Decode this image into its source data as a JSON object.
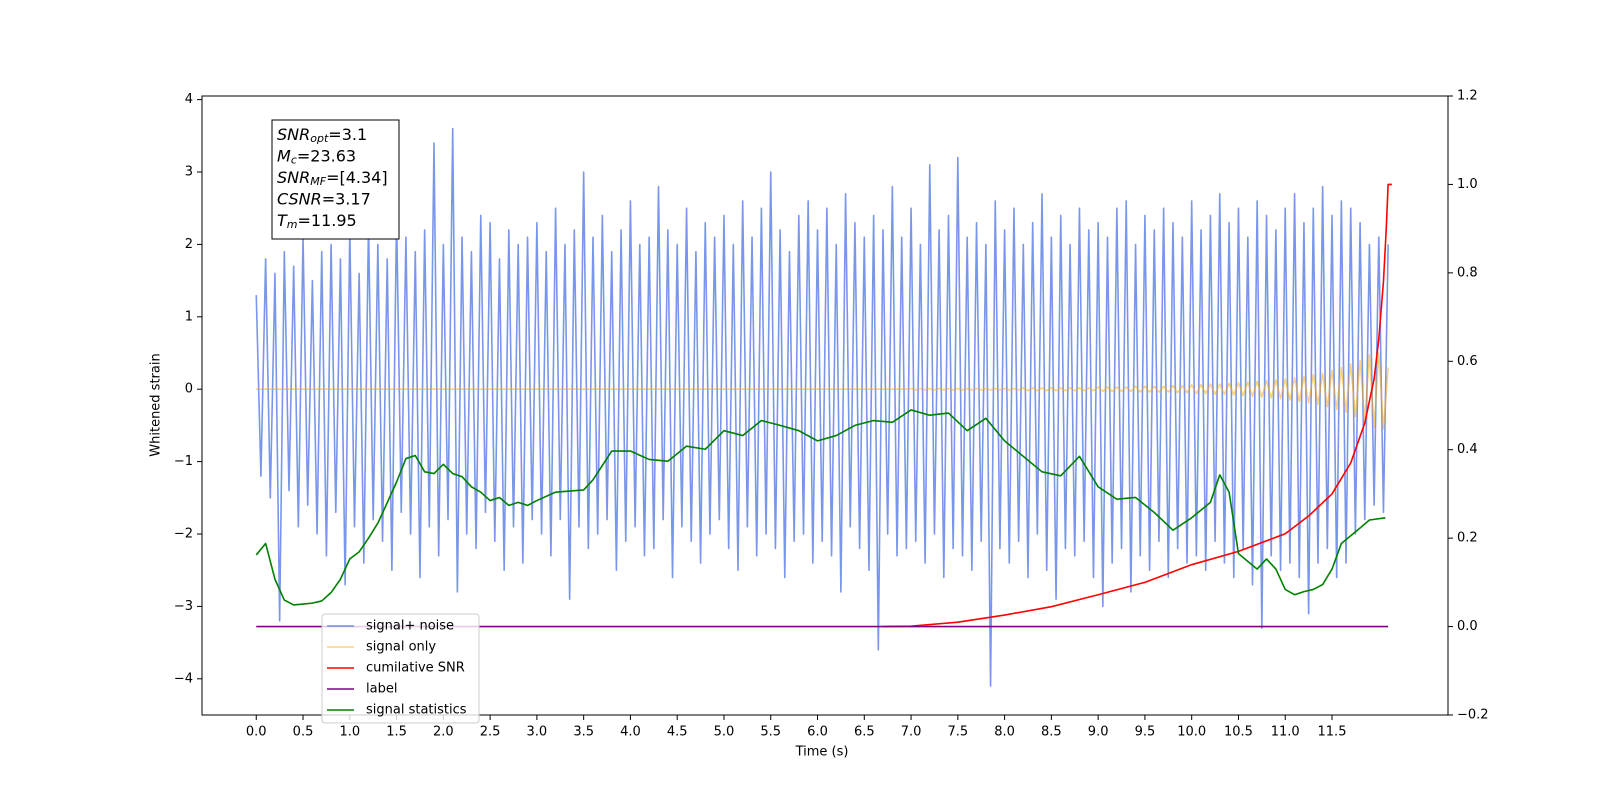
{
  "chart_data": {
    "type": "line",
    "xlabel": "Time (s)",
    "ylabel": "Whitened strain",
    "xlim": [
      -0.58,
      12.74
    ],
    "ylim": [
      -4.5,
      4.05
    ],
    "y2lim": [
      -0.2,
      1.2
    ],
    "xticks": [
      {
        "value": 0,
        "label": "0.0"
      },
      0.5,
      {
        "value": 1,
        "label": "1.0"
      },
      1.5,
      {
        "value": 2,
        "label": "2.0"
      },
      2.5,
      {
        "value": 3,
        "label": "3.0"
      },
      3.5,
      {
        "value": 4,
        "label": "4.0"
      },
      4.5,
      {
        "value": 5,
        "label": "5.0"
      },
      5.5,
      {
        "value": 6,
        "label": "6.0"
      },
      6.5,
      {
        "value": 7,
        "label": "7.0"
      },
      7.5,
      {
        "value": 8,
        "label": "8.0"
      },
      8.5,
      {
        "value": 9,
        "label": "9.0"
      },
      9.5,
      {
        "value": 10,
        "label": "10.0"
      },
      10.5,
      {
        "value": 11,
        "label": "11.0"
      },
      11.5
    ],
    "yticks": [
      {
        "value": -4,
        "label": "−4"
      },
      {
        "value": -3,
        "label": "−3"
      },
      {
        "value": -2,
        "label": "−2"
      },
      {
        "value": -1,
        "label": "−1"
      },
      0,
      1,
      2,
      3,
      4
    ],
    "y2ticks": [
      {
        "value": -0.2,
        "label": "−0.2"
      },
      {
        "value": 0,
        "label": "0.0"
      },
      0.2,
      0.4,
      0.6,
      0.8,
      {
        "value": 1,
        "label": "1.0"
      },
      1.2
    ],
    "legend": "lower left",
    "annotations": [
      {
        "main": "SNR",
        "sub": "opt",
        "rest": "=3.1"
      },
      {
        "main": "M",
        "sub": "c",
        "rest": "=23.63"
      },
      {
        "main": "SNR",
        "sub": "MF",
        "rest": "=[4.34]"
      },
      {
        "main": "CSNR",
        "rest": "=3.17"
      },
      {
        "main": "T",
        "sub": "m",
        "rest": "=11.95"
      }
    ],
    "x": [
      0,
      0.05,
      0.1,
      0.15,
      0.2,
      0.25,
      0.3,
      0.35,
      0.4,
      0.45,
      0.5,
      0.55,
      0.6,
      0.65,
      0.7,
      0.75,
      0.8,
      0.85,
      0.9,
      0.95,
      1,
      1.05,
      1.1,
      1.15,
      1.2,
      1.25,
      1.3,
      1.35,
      1.4,
      1.45,
      1.5,
      1.55,
      1.6,
      1.65,
      1.7,
      1.75,
      1.8,
      1.85,
      1.9,
      1.95,
      2,
      2.05,
      2.1,
      2.15,
      2.2,
      2.25,
      2.3,
      2.35,
      2.4,
      2.45,
      2.5,
      2.55,
      2.6,
      2.65,
      2.7,
      2.75,
      2.8,
      2.85,
      2.9,
      2.95,
      3,
      3.05,
      3.1,
      3.15,
      3.2,
      3.25,
      3.3,
      3.35,
      3.4,
      3.45,
      3.5,
      3.55,
      3.6,
      3.65,
      3.7,
      3.75,
      3.8,
      3.85,
      3.9,
      3.95,
      4,
      4.05,
      4.1,
      4.15,
      4.2,
      4.25,
      4.3,
      4.35,
      4.4,
      4.45,
      4.5,
      4.55,
      4.6,
      4.65,
      4.7,
      4.75,
      4.8,
      4.85,
      4.9,
      4.95,
      5,
      5.05,
      5.1,
      5.15,
      5.2,
      5.25,
      5.3,
      5.35,
      5.4,
      5.45,
      5.5,
      5.55,
      5.6,
      5.65,
      5.7,
      5.75,
      5.8,
      5.85,
      5.9,
      5.95,
      6,
      6.05,
      6.1,
      6.15,
      6.2,
      6.25,
      6.3,
      6.35,
      6.4,
      6.45,
      6.5,
      6.55,
      6.6,
      6.65,
      6.7,
      6.75,
      6.8,
      6.85,
      6.9,
      6.95,
      7,
      7.05,
      7.1,
      7.15,
      7.2,
      7.25,
      7.3,
      7.35,
      7.4,
      7.45,
      7.5,
      7.55,
      7.6,
      7.65,
      7.7,
      7.75,
      7.8,
      7.85,
      7.9,
      7.95,
      8,
      8.05,
      8.1,
      8.15,
      8.2,
      8.25,
      8.3,
      8.35,
      8.4,
      8.45,
      8.5,
      8.55,
      8.6,
      8.65,
      8.7,
      8.75,
      8.8,
      8.85,
      8.9,
      8.95,
      9,
      9.05,
      9.1,
      9.15,
      9.2,
      9.25,
      9.3,
      9.35,
      9.4,
      9.45,
      9.5,
      9.55,
      9.6,
      9.65,
      9.7,
      9.75,
      9.8,
      9.85,
      9.9,
      9.95,
      10,
      10.05,
      10.1,
      10.15,
      10.2,
      10.25,
      10.3,
      10.35,
      10.4,
      10.45,
      10.5,
      10.55,
      10.6,
      10.65,
      10.7,
      10.75,
      10.8,
      10.85,
      10.9,
      10.95,
      11,
      11.05,
      11.1,
      11.15,
      11.2,
      11.25,
      11.3,
      11.35,
      11.4,
      11.45,
      11.5,
      11.55,
      11.6,
      11.65,
      11.7,
      11.75,
      11.8,
      11.85,
      11.9,
      11.95,
      12,
      12.05,
      12.1
    ],
    "series": [
      {
        "name": "signal+ noise",
        "color": "royalblue",
        "alpha": 0.7,
        "values": [
          1.3,
          -1.2,
          1.8,
          -1.5,
          1.6,
          -3.2,
          1.9,
          -1.4,
          1.7,
          -1.9,
          2.1,
          -1.6,
          1.5,
          -2.0,
          1.9,
          -2.3,
          2.0,
          -1.7,
          1.8,
          -2.7,
          2.2,
          -1.9,
          1.6,
          -2.4,
          2.3,
          -1.8,
          2.0,
          -2.1,
          1.8,
          -2.5,
          2.4,
          -1.7,
          2.1,
          -2.0,
          1.9,
          -2.6,
          2.2,
          -1.9,
          3.4,
          -2.3,
          2.0,
          -1.8,
          3.6,
          -2.8,
          2.1,
          -2.0,
          1.9,
          -2.2,
          2.4,
          -1.7,
          2.3,
          -2.1,
          1.8,
          -2.5,
          2.2,
          -1.9,
          2.0,
          -2.4,
          2.1,
          -1.8,
          2.3,
          -2.0,
          1.9,
          -2.3,
          2.5,
          -1.8,
          2.0,
          -2.9,
          2.2,
          -1.9,
          3.0,
          -2.2,
          2.1,
          -2.0,
          2.4,
          -1.8,
          1.9,
          -2.5,
          2.2,
          -2.1,
          2.6,
          -1.9,
          2.0,
          -2.3,
          2.1,
          -2.2,
          2.8,
          -1.8,
          2.2,
          -2.6,
          2.0,
          -1.9,
          2.5,
          -2.1,
          1.9,
          -2.4,
          2.3,
          -2.0,
          2.1,
          -1.8,
          2.4,
          -2.2,
          2.0,
          -2.5,
          2.6,
          -1.9,
          2.1,
          -2.3,
          2.5,
          -2.0,
          3.0,
          -2.2,
          2.2,
          -2.6,
          1.9,
          -2.1,
          2.4,
          -2.0,
          2.6,
          -2.4,
          2.2,
          -2.1,
          2.5,
          -2.3,
          2.0,
          -2.8,
          2.7,
          -1.9,
          2.3,
          -2.2,
          2.1,
          -2.5,
          2.4,
          -3.6,
          2.2,
          -2.0,
          2.8,
          -2.3,
          2.1,
          -2.2,
          2.5,
          -2.1,
          2.0,
          -2.4,
          3.1,
          -2.0,
          2.2,
          -2.6,
          2.4,
          -2.2,
          3.2,
          -2.3,
          2.1,
          -2.5,
          2.3,
          -2.1,
          2.0,
          -4.1,
          2.6,
          -2.2,
          2.2,
          -2.4,
          2.5,
          -2.1,
          2.0,
          -2.6,
          2.3,
          -2.0,
          2.7,
          -2.5,
          2.1,
          -2.9,
          2.4,
          -2.2,
          2.0,
          -2.3,
          2.5,
          -2.1,
          2.2,
          -2.6,
          2.3,
          -3.0,
          2.1,
          -2.4,
          2.5,
          -2.2,
          2.6,
          -2.8,
          2.0,
          -2.3,
          2.4,
          -2.5,
          2.2,
          -2.1,
          2.5,
          -2.6,
          2.3,
          -2.2,
          2.1,
          -2.4,
          2.6,
          -2.3,
          2.2,
          -2.5,
          2.4,
          -2.1,
          2.7,
          -2.4,
          2.3,
          -2.6,
          2.5,
          -2.2,
          2.1,
          -2.7,
          2.6,
          -3.3,
          2.4,
          -2.3,
          2.2,
          -2.5,
          2.5,
          -2.4,
          2.7,
          -2.6,
          2.3,
          -3.1,
          2.5,
          -2.4,
          2.8,
          -2.2,
          2.4,
          -2.6,
          2.6,
          -2.4,
          2.5,
          -2.0,
          2.3,
          -1.8,
          2.0,
          -1.6,
          2.1,
          -1.7,
          2.0
        ]
      },
      {
        "name": "signal only",
        "color": "orange",
        "alpha": 0.5,
        "values": [
          0,
          0,
          0,
          0,
          0,
          0,
          0,
          0,
          0,
          0,
          0,
          0,
          0,
          0,
          0,
          0,
          0,
          0,
          0,
          0,
          0,
          0,
          0,
          0,
          0,
          0,
          0,
          0,
          0,
          0,
          0,
          0,
          0,
          0,
          0,
          0,
          0,
          0,
          0,
          0,
          0,
          0,
          0,
          0,
          0,
          0,
          0,
          0,
          0,
          0,
          0,
          0,
          0,
          0,
          0,
          0,
          0,
          0,
          0,
          0,
          0,
          0,
          0,
          0,
          0,
          0,
          0,
          0,
          0,
          0,
          0,
          0,
          0,
          0,
          0,
          0,
          0,
          0,
          0,
          0,
          0,
          0,
          0,
          0,
          0,
          0,
          0,
          0,
          0,
          0,
          0,
          0,
          0,
          0,
          0,
          0,
          0,
          0,
          0,
          0,
          0,
          0,
          0,
          0,
          0,
          0,
          0,
          0,
          0,
          0,
          0,
          0,
          0,
          0,
          0,
          0,
          0,
          0,
          0,
          0,
          0,
          0,
          0,
          0,
          0,
          0,
          0,
          0,
          0,
          0,
          0,
          0,
          0,
          0,
          0,
          0,
          0,
          0,
          0,
          0,
          0.01,
          -0.01,
          0.01,
          -0.01,
          0.01,
          -0.01,
          0.01,
          -0.01,
          0.01,
          -0.01,
          0.01,
          -0.01,
          0.01,
          -0.01,
          0.01,
          -0.01,
          0.01,
          -0.01,
          0.01,
          -0.01,
          0.01,
          -0.01,
          0.01,
          -0.01,
          0.02,
          -0.02,
          0.02,
          -0.02,
          0.02,
          -0.02,
          0.02,
          -0.02,
          0.02,
          -0.02,
          0.02,
          -0.02,
          0.02,
          -0.02,
          0.02,
          -0.02,
          0.03,
          -0.03,
          0.03,
          -0.03,
          0.03,
          -0.03,
          0.03,
          -0.03,
          0.04,
          -0.04,
          0.04,
          -0.04,
          0.04,
          -0.04,
          0.04,
          -0.04,
          0.05,
          -0.05,
          0.05,
          -0.05,
          0.06,
          -0.06,
          0.06,
          -0.06,
          0.07,
          -0.07,
          0.07,
          -0.07,
          0.08,
          -0.08,
          0.09,
          -0.09,
          0.1,
          -0.1,
          0.11,
          -0.11,
          0.12,
          -0.12,
          0.13,
          -0.13,
          0.14,
          -0.15,
          0.16,
          -0.17,
          0.18,
          -0.19,
          0.2,
          -0.21,
          0.22,
          -0.24,
          0.26,
          -0.28,
          0.3,
          -0.32,
          0.35,
          -0.38,
          0.4,
          -0.44,
          0.48,
          -0.52,
          0.5,
          -0.55,
          0.3
        ]
      },
      {
        "name": "cumilative SNR",
        "color": "red",
        "axis": "y2",
        "x": [
          6.7,
          7.0,
          7.5,
          8.0,
          8.5,
          9.0,
          9.5,
          10.0,
          10.5,
          11.0,
          11.25,
          11.5,
          11.7,
          11.85,
          11.95,
          12.0,
          12.05,
          12.08,
          12.1,
          12.14
        ],
        "values": [
          0,
          0.001,
          0.01,
          0.026,
          0.045,
          0.072,
          0.1,
          0.14,
          0.17,
          0.21,
          0.25,
          0.3,
          0.37,
          0.46,
          0.56,
          0.65,
          0.78,
          0.9,
          1.0,
          1.0
        ]
      },
      {
        "name": "label",
        "color": "purple",
        "axis": "y2",
        "x": [
          0,
          12.1
        ],
        "values": [
          0,
          0
        ]
      },
      {
        "name": "signal statistics",
        "color": "green",
        "axis": "y2",
        "x": [
          0,
          0.1,
          0.2,
          0.3,
          0.4,
          0.5,
          0.6,
          0.7,
          0.8,
          0.9,
          1.0,
          1.1,
          1.2,
          1.3,
          1.4,
          1.5,
          1.6,
          1.7,
          1.8,
          1.9,
          2.0,
          2.1,
          2.2,
          2.3,
          2.4,
          2.5,
          2.6,
          2.7,
          2.8,
          2.9,
          3.0,
          3.2,
          3.5,
          3.6,
          3.8,
          4.0,
          4.2,
          4.4,
          4.6,
          4.8,
          5.0,
          5.2,
          5.4,
          5.6,
          5.8,
          6.0,
          6.2,
          6.4,
          6.6,
          6.8,
          7.0,
          7.2,
          7.4,
          7.6,
          7.8,
          8.0,
          8.2,
          8.4,
          8.6,
          8.8,
          9.0,
          9.2,
          9.4,
          9.6,
          9.8,
          10.0,
          10.2,
          10.3,
          10.4,
          10.5,
          10.7,
          10.8,
          10.9,
          11.0,
          11.1,
          11.2,
          11.3,
          11.4,
          11.5,
          11.6,
          11.8,
          11.9,
          12.07
        ],
        "values": [
          0.162,
          0.188,
          0.107,
          0.06,
          0.049,
          0.051,
          0.053,
          0.058,
          0.077,
          0.107,
          0.153,
          0.169,
          0.2,
          0.234,
          0.28,
          0.327,
          0.38,
          0.387,
          0.35,
          0.346,
          0.367,
          0.346,
          0.339,
          0.316,
          0.304,
          0.285,
          0.292,
          0.274,
          0.281,
          0.274,
          0.285,
          0.304,
          0.309,
          0.332,
          0.397,
          0.397,
          0.378,
          0.374,
          0.408,
          0.401,
          0.443,
          0.432,
          0.466,
          0.455,
          0.443,
          0.42,
          0.432,
          0.455,
          0.466,
          0.462,
          0.49,
          0.478,
          0.483,
          0.443,
          0.471,
          0.42,
          0.385,
          0.35,
          0.341,
          0.385,
          0.316,
          0.288,
          0.292,
          0.258,
          0.218,
          0.246,
          0.281,
          0.343,
          0.304,
          0.165,
          0.13,
          0.153,
          0.13,
          0.084,
          0.072,
          0.079,
          0.084,
          0.095,
          0.13,
          0.188,
          0.223,
          0.241,
          0.246
        ]
      }
    ]
  }
}
